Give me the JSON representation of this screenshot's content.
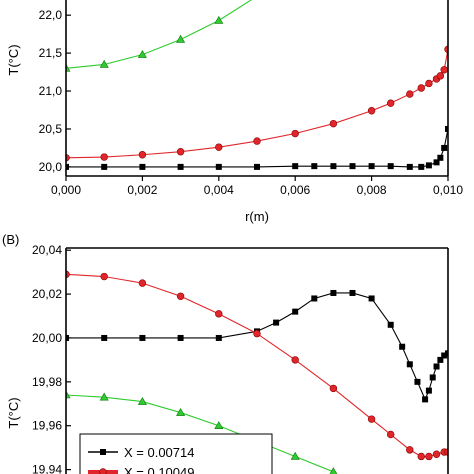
{
  "chart_data": [
    {
      "type": "line",
      "panel_label": "",
      "xlabel": "r(m)",
      "ylabel": "T(°C)",
      "xlim": [
        0,
        0.01
      ],
      "ylim": [
        19.88,
        22.2
      ],
      "x_ticks": [
        {
          "value": 0.0,
          "label": "0,000"
        },
        {
          "value": 0.002,
          "label": "0,002"
        },
        {
          "value": 0.004,
          "label": "0,004"
        },
        {
          "value": 0.006,
          "label": "0,006"
        },
        {
          "value": 0.008,
          "label": "0,008"
        },
        {
          "value": 0.01,
          "label": "0,010"
        }
      ],
      "y_ticks": [
        {
          "value": 20.0,
          "label": "20,0"
        },
        {
          "value": 20.5,
          "label": "20,5"
        },
        {
          "value": 21.0,
          "label": "21,0"
        },
        {
          "value": 21.5,
          "label": "21,5"
        },
        {
          "value": 22.0,
          "label": "22,0"
        }
      ],
      "series": [
        {
          "color": "#000000",
          "marker": "square",
          "x": [
            0,
            0.001,
            0.002,
            0.003,
            0.004,
            0.005,
            0.006,
            0.0065,
            0.007,
            0.0075,
            0.008,
            0.0085,
            0.009,
            0.0093,
            0.0095,
            0.0097,
            0.0098,
            0.0099,
            0.01
          ],
          "y": [
            20.0,
            20.0,
            20.0,
            20.0,
            20.0,
            20.0,
            20.01,
            20.01,
            20.01,
            20.01,
            20.01,
            20.01,
            20.0,
            20.0,
            20.02,
            20.06,
            20.12,
            20.25,
            20.5
          ]
        },
        {
          "color": "#e0262b",
          "marker": "circle",
          "x": [
            0,
            0.001,
            0.002,
            0.003,
            0.004,
            0.005,
            0.006,
            0.007,
            0.008,
            0.0085,
            0.009,
            0.0093,
            0.0095,
            0.0097,
            0.0098,
            0.0099,
            0.01
          ],
          "y": [
            20.12,
            20.13,
            20.16,
            20.2,
            20.26,
            20.34,
            20.44,
            20.57,
            20.74,
            20.84,
            20.96,
            21.04,
            21.1,
            21.16,
            21.2,
            21.28,
            21.55
          ]
        },
        {
          "color": "#2ecc2e",
          "marker": "triangle",
          "x": [
            0,
            0.001,
            0.002,
            0.003,
            0.004,
            0.005
          ],
          "y": [
            21.3,
            21.35,
            21.48,
            21.68,
            21.93,
            22.25
          ]
        }
      ]
    },
    {
      "type": "line",
      "panel_label": "(B)",
      "xlabel": "",
      "ylabel": "T(°C)",
      "xlim": [
        0,
        0.01
      ],
      "ylim": [
        19.938,
        20.041
      ],
      "y_ticks": [
        {
          "value": 19.94,
          "label": "19,94"
        },
        {
          "value": 19.96,
          "label": "19,96"
        },
        {
          "value": 19.98,
          "label": "19,98"
        },
        {
          "value": 20.0,
          "label": "20,00"
        },
        {
          "value": 20.02,
          "label": "20,02"
        },
        {
          "value": 20.04,
          "label": "20,04"
        }
      ],
      "legend_position": "bottom-left",
      "series": [
        {
          "name": "X = 0.00714",
          "color": "#000000",
          "marker": "square",
          "x": [
            0,
            0.001,
            0.002,
            0.003,
            0.004,
            0.005,
            0.0055,
            0.006,
            0.0065,
            0.007,
            0.0075,
            0.008,
            0.0085,
            0.0088,
            0.009,
            0.0092,
            0.0094,
            0.0095,
            0.0096,
            0.0097,
            0.0098,
            0.0099,
            0.01
          ],
          "y": [
            20.0,
            20.0,
            20.0,
            20.0,
            20.0,
            20.003,
            20.007,
            20.012,
            20.018,
            20.0205,
            20.0205,
            20.018,
            20.006,
            19.996,
            19.988,
            19.98,
            19.972,
            19.976,
            19.982,
            19.987,
            19.99,
            19.992,
            19.993
          ]
        },
        {
          "name": "X = 0.10049",
          "color": "#e0262b",
          "marker": "circle",
          "x": [
            0,
            0.001,
            0.002,
            0.003,
            0.004,
            0.005,
            0.006,
            0.007,
            0.008,
            0.0085,
            0.009,
            0.0093,
            0.0095,
            0.0097,
            0.0099,
            0.01
          ],
          "y": [
            20.029,
            20.028,
            20.025,
            20.019,
            20.011,
            20.002,
            19.99,
            19.977,
            19.963,
            19.956,
            19.949,
            19.946,
            19.946,
            19.947,
            19.948,
            19.948
          ]
        },
        {
          "color": "#2ecc2e",
          "marker": "triangle",
          "x": [
            0,
            0.001,
            0.002,
            0.003,
            0.004,
            0.005,
            0.006,
            0.007
          ],
          "y": [
            19.974,
            19.973,
            19.971,
            19.966,
            19.96,
            19.953,
            19.946,
            19.939
          ]
        }
      ]
    }
  ]
}
